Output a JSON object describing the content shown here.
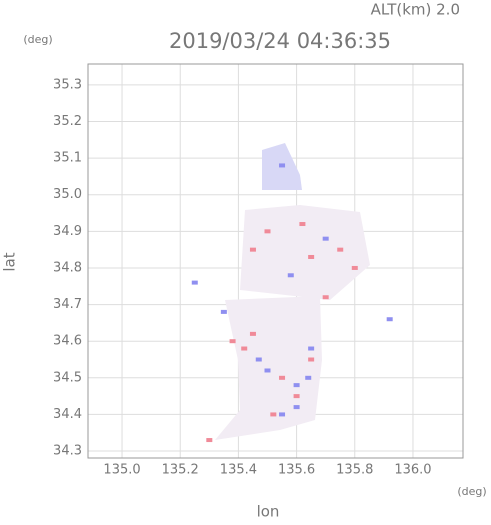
{
  "chart_data": {
    "type": "scatter",
    "title": "2019/03/24 04:36:35",
    "subtitle": "ALT(km) 2.0",
    "x_label": "lon",
    "y_label": "lat",
    "x_unit": "(deg)",
    "y_unit": "(deg)",
    "xlim": [
      134.883,
      136.172
    ],
    "ylim": [
      34.281,
      35.357
    ],
    "xticks": [
      {
        "value": 135.0,
        "label": "135.0"
      },
      {
        "value": 135.2,
        "label": "135.2"
      },
      {
        "value": 135.4,
        "label": "135.4"
      },
      {
        "value": 135.6,
        "label": "135.6"
      },
      {
        "value": 135.8,
        "label": "135.8"
      },
      {
        "value": 136.0,
        "label": "136.0"
      }
    ],
    "yticks": [
      {
        "value": 34.3,
        "label": "34.3"
      },
      {
        "value": 34.4,
        "label": "34.4"
      },
      {
        "value": 34.5,
        "label": "34.5"
      },
      {
        "value": 34.6,
        "label": "34.6"
      },
      {
        "value": 34.7,
        "label": "34.7"
      },
      {
        "value": 34.8,
        "label": "34.8"
      },
      {
        "value": 34.9,
        "label": "34.9"
      },
      {
        "value": 35.0,
        "label": "35.0"
      },
      {
        "value": 35.1,
        "label": "35.1"
      },
      {
        "value": 35.2,
        "label": "35.2"
      },
      {
        "value": 35.3,
        "label": "35.3"
      }
    ],
    "grid": true,
    "series": [
      {
        "color": "#f08a98",
        "x": [
          135.3,
          135.52,
          135.6,
          135.55,
          135.65,
          135.45,
          135.38,
          135.5,
          135.65,
          135.75,
          135.8,
          135.45,
          135.62,
          135.7,
          135.42
        ],
        "y": [
          34.33,
          34.4,
          34.45,
          34.5,
          34.55,
          34.62,
          34.6,
          34.9,
          34.83,
          34.85,
          34.8,
          34.85,
          34.92,
          34.72,
          34.58
        ]
      },
      {
        "color": "#8f8ff0",
        "x": [
          135.55,
          135.5,
          135.6,
          135.65,
          135.55,
          135.47,
          135.35,
          135.58,
          135.7,
          135.92,
          135.25,
          135.6,
          135.64
        ],
        "y": [
          35.08,
          34.52,
          34.48,
          34.58,
          34.4,
          34.55,
          34.68,
          34.78,
          34.88,
          34.66,
          34.76,
          34.42,
          34.5
        ]
      }
    ]
  }
}
